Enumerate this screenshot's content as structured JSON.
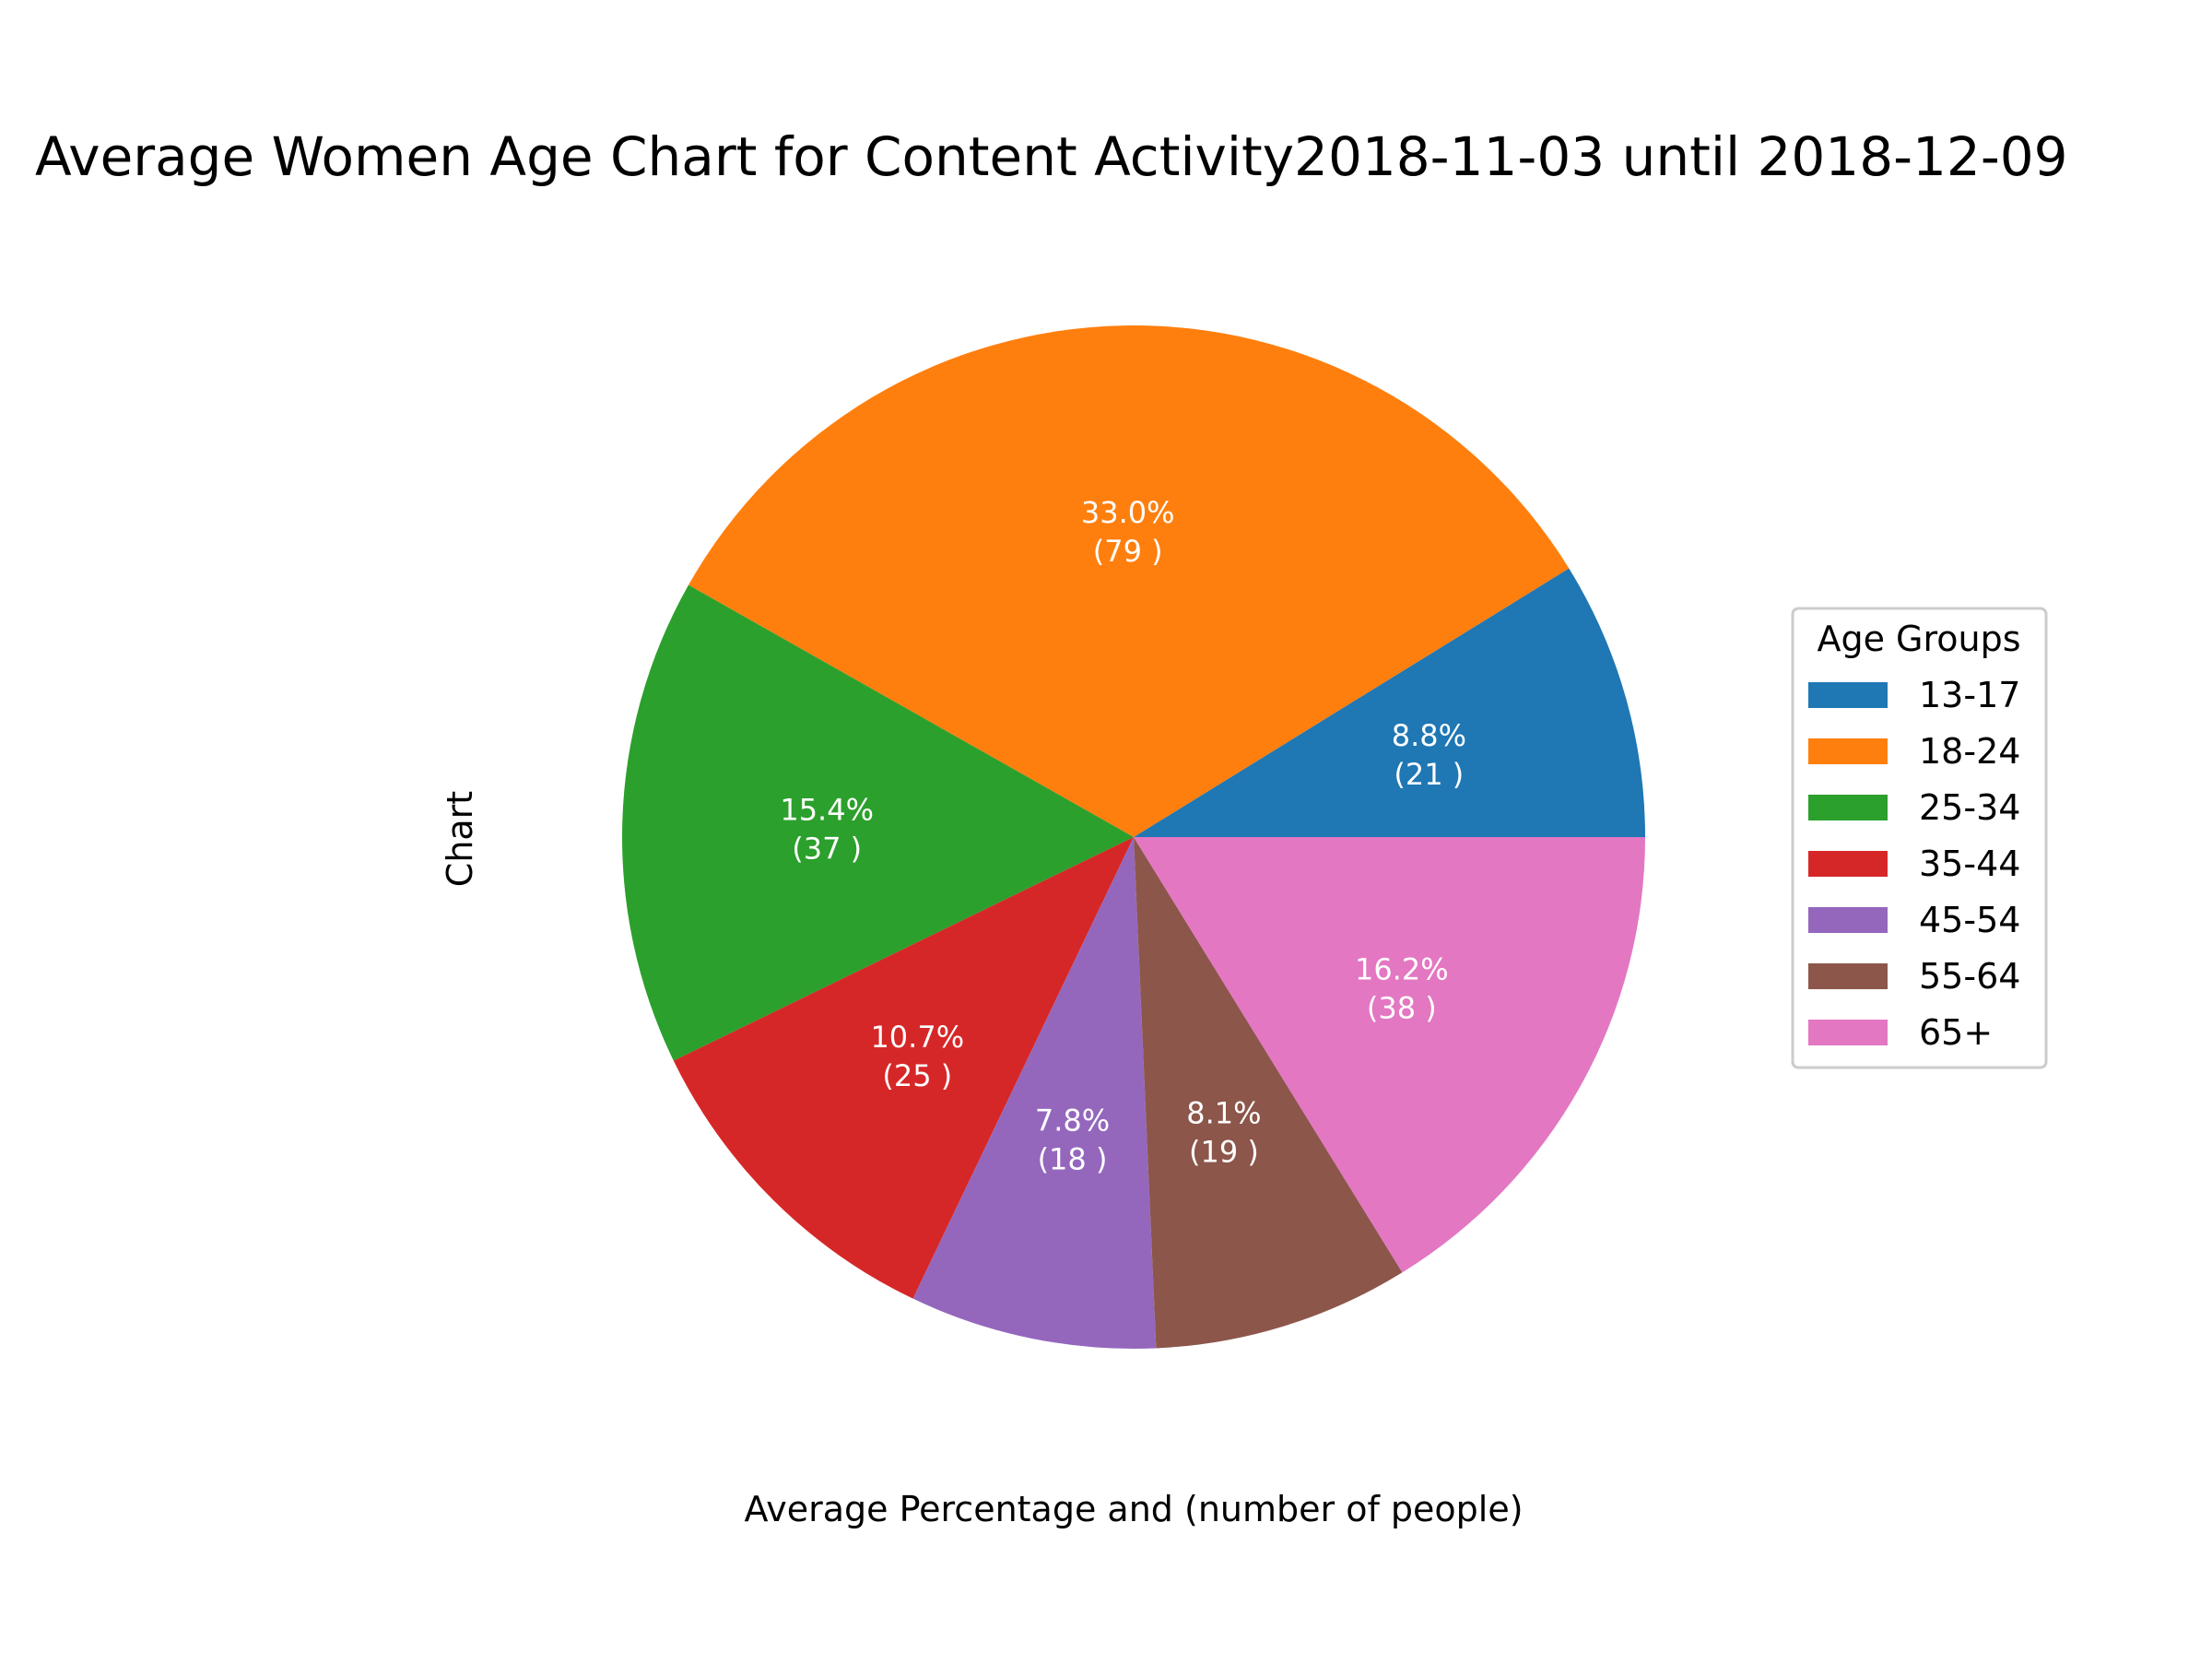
{
  "chart_data": {
    "type": "pie",
    "title": "Average Women Age Chart for Content Activity2018-11-03 until 2018-12-09",
    "xlabel": "Average Percentage and (number of people)",
    "ylabel": "Chart",
    "legend": {
      "title": "Age Groups",
      "placement": "right"
    },
    "start_angle_deg": 0,
    "direction": "counterclockwise",
    "slices": [
      {
        "label": "13-17",
        "percent": 8.8,
        "count": 21,
        "percent_text": "8.8%",
        "count_text": "(21 )",
        "color": "#1f77b4"
      },
      {
        "label": "18-24",
        "percent": 33.0,
        "count": 79,
        "percent_text": "33.0%",
        "count_text": "(79 )",
        "color": "#ff7f0e"
      },
      {
        "label": "25-34",
        "percent": 15.4,
        "count": 37,
        "percent_text": "15.4%",
        "count_text": "(37 )",
        "color": "#2ca02c"
      },
      {
        "label": "35-44",
        "percent": 10.7,
        "count": 25,
        "percent_text": "10.7%",
        "count_text": "(25 )",
        "color": "#d62728"
      },
      {
        "label": "45-54",
        "percent": 7.8,
        "count": 18,
        "percent_text": "7.8%",
        "count_text": "(18 )",
        "color": "#9467bd"
      },
      {
        "label": "55-64",
        "percent": 8.1,
        "count": 19,
        "percent_text": "8.1%",
        "count_text": "(19 )",
        "color": "#8c564b"
      },
      {
        "label": "65+",
        "percent": 16.2,
        "count": 38,
        "percent_text": "16.2%",
        "count_text": "(38 )",
        "color": "#e377c2"
      }
    ]
  }
}
